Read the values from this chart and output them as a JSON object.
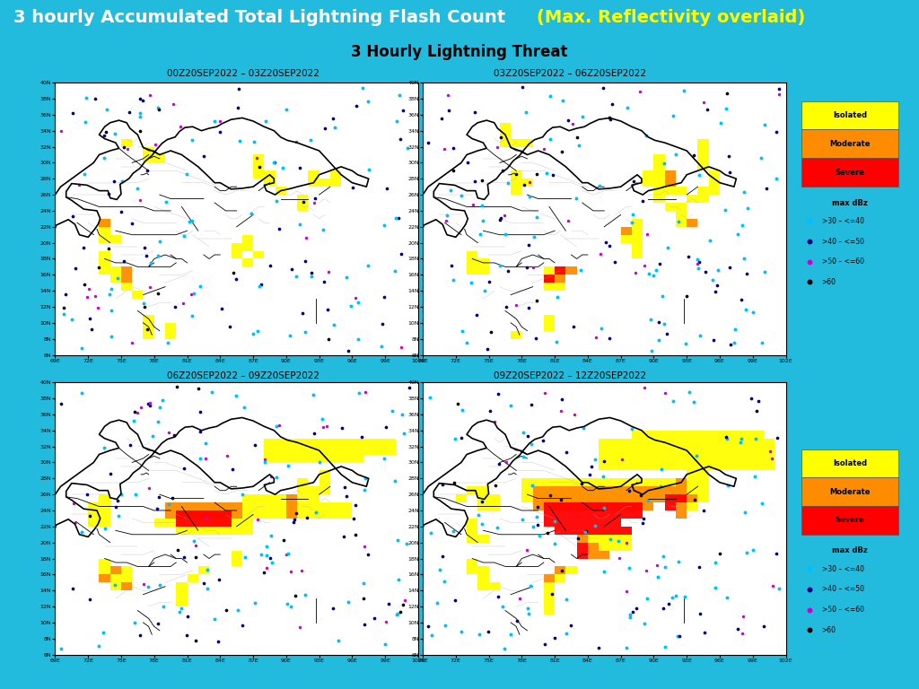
{
  "title_part1": "3 hourly Accumulated Total Lightning Flash Count ",
  "title_part2": "(Max. Reflectivity overlaid)",
  "title_bg": "#1AADCC",
  "title_color1": "#FFFFFF",
  "title_color2": "#FFFF00",
  "title_fontsize": 14,
  "subtitle": "3 Hourly Lightning Threat",
  "subtitle_fontsize": 12,
  "panel_titles": [
    "00Z20SEP2022 – 03Z20SEP2022",
    "03Z20SEP2022 – 06Z20SEP2022",
    "06Z20SEP2022 – 09Z20SEP2022",
    "09Z20SEP2022 – 12Z20SEP2022"
  ],
  "legend_categories": [
    "Isolated",
    "Moderate",
    "Severe"
  ],
  "legend_colors": [
    "#FFFF00",
    "#FF8C00",
    "#FF0000"
  ],
  "legend_title": "max dBz",
  "legend_dot_labels": [
    ">30 – <=40",
    ">40 – <=50",
    ">50 – <=60",
    ">60"
  ],
  "legend_dot_colors": [
    "#00BFFF",
    "#000080",
    "#CC00CC",
    "#000000"
  ],
  "outer_bg": "#22BBDD",
  "inner_bg": "#FFFFFF",
  "lat_ticks": [
    6,
    8,
    10,
    12,
    14,
    16,
    18,
    20,
    22,
    24,
    26,
    28,
    30,
    32,
    34,
    36,
    38,
    40
  ],
  "lon_ticks": [
    69,
    72,
    75,
    78,
    81,
    84,
    87,
    90,
    93,
    96,
    99,
    102
  ],
  "lat_range": [
    6,
    40
  ],
  "lon_range": [
    69,
    102
  ]
}
